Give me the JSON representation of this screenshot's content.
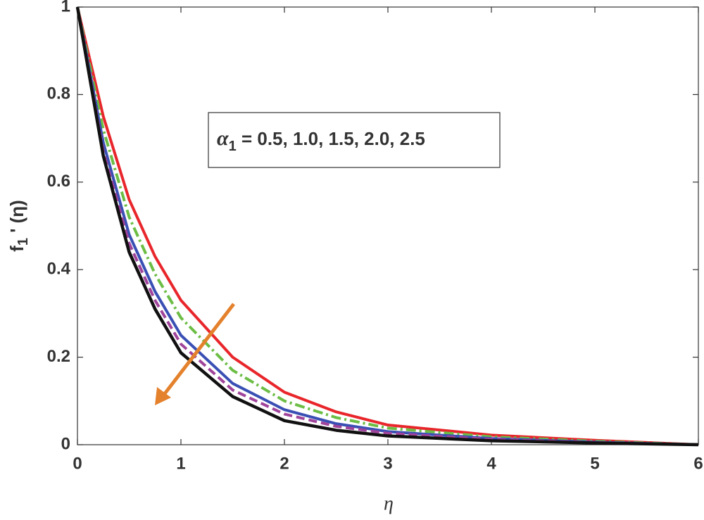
{
  "chart_data": {
    "type": "line",
    "xlabel": "η",
    "ylabel": {
      "base": "f",
      "sub": "1",
      "rest": " ' (η)"
    },
    "annotation": {
      "symbol": "α",
      "sub": "1",
      "text": " = 0.5, 1.0, 1.5, 2.0, 2.5"
    },
    "x": [
      0,
      0.25,
      0.5,
      0.75,
      1,
      1.5,
      2,
      2.5,
      3,
      4,
      5,
      6
    ],
    "series": [
      {
        "color": "#e8262b",
        "dash": "solid",
        "values": [
          1,
          0.75,
          0.56,
          0.43,
          0.33,
          0.2,
          0.12,
          0.075,
          0.045,
          0.022,
          0.01,
          0
        ]
      },
      {
        "color": "#6cbd45",
        "dash": "dashdot",
        "values": [
          1,
          0.72,
          0.52,
          0.39,
          0.29,
          0.17,
          0.1,
          0.062,
          0.038,
          0.018,
          0.008,
          0
        ]
      },
      {
        "color": "#3a4fb4",
        "dash": "solid",
        "values": [
          1,
          0.69,
          0.48,
          0.35,
          0.25,
          0.14,
          0.08,
          0.048,
          0.03,
          0.014,
          0.006,
          0
        ]
      },
      {
        "color": "#a0449b",
        "dash": "dashed",
        "values": [
          1,
          0.67,
          0.46,
          0.33,
          0.23,
          0.125,
          0.07,
          0.042,
          0.026,
          0.012,
          0.005,
          0
        ]
      },
      {
        "color": "#111111",
        "dash": "solid",
        "values": [
          1,
          0.66,
          0.44,
          0.31,
          0.21,
          0.11,
          0.055,
          0.033,
          0.02,
          0.009,
          0.004,
          0
        ]
      }
    ],
    "xlim": [
      0,
      6
    ],
    "xticks": [
      0,
      1,
      2,
      3,
      4,
      5,
      6
    ],
    "ylim": [
      0,
      1
    ],
    "yticks": [
      0,
      0.2,
      0.4,
      0.6,
      0.8,
      1
    ],
    "grid": false
  }
}
